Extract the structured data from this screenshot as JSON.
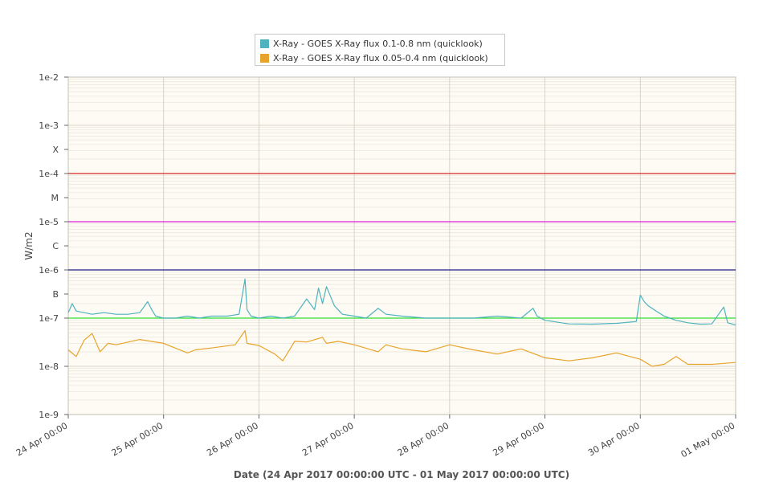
{
  "chart_data": {
    "type": "line",
    "title": "",
    "xlabel": "Date (24 Apr 2017 00:00:00 UTC - 01 May 2017 00:00:00 UTC)",
    "ylabel": "W/m2",
    "yscale": "log",
    "ylim": [
      1e-09,
      0.01
    ],
    "xlim": [
      "2017-04-24T00:00:00Z",
      "2017-05-01T00:00:00Z"
    ],
    "grid": true,
    "legend_position": "top-center",
    "plot_background": "#fdfbf3",
    "x_ticks": [
      "24 Apr 00:00",
      "25 Apr 00:00",
      "26 Apr 00:00",
      "27 Apr 00:00",
      "28 Apr 00:00",
      "29 Apr 00:00",
      "30 Apr 00:00",
      "01 May 00:00"
    ],
    "y_ticks": [
      {
        "label": "1e-9",
        "value": 1e-09
      },
      {
        "label": "1e-8",
        "value": 1e-08
      },
      {
        "label": "1e-7",
        "value": 1e-07
      },
      {
        "label": "B",
        "value": 3.16e-07
      },
      {
        "label": "1e-6",
        "value": 1e-06
      },
      {
        "label": "C",
        "value": 3.16e-06
      },
      {
        "label": "1e-5",
        "value": 1e-05
      },
      {
        "label": "M",
        "value": 3.16e-05
      },
      {
        "label": "1e-4",
        "value": 0.0001
      },
      {
        "label": "X",
        "value": 0.000316
      },
      {
        "label": "1e-3",
        "value": 0.001
      },
      {
        "label": "1e-2",
        "value": 0.01
      }
    ],
    "reference_lines": [
      {
        "value": 0.0001,
        "color": "#d62728"
      },
      {
        "value": 1e-05,
        "color": "#e020e0"
      },
      {
        "value": 1e-06,
        "color": "#1c1c8c"
      },
      {
        "value": 1e-07,
        "color": "#33dd33"
      }
    ],
    "series": [
      {
        "name": "X-Ray - GOES X-Ray flux 0.1-0.8 nm (quicklook)",
        "color": "#4fb2bf",
        "x": [
          "2017-04-24T00:00:00Z",
          "2017-04-24T01:00:00Z",
          "2017-04-24T02:00:00Z",
          "2017-04-24T04:00:00Z",
          "2017-04-24T06:00:00Z",
          "2017-04-24T09:00:00Z",
          "2017-04-24T12:00:00Z",
          "2017-04-24T15:00:00Z",
          "2017-04-24T18:00:00Z",
          "2017-04-24T20:00:00Z",
          "2017-04-24T21:00:00Z",
          "2017-04-24T22:00:00Z",
          "2017-04-25T00:00:00Z",
          "2017-04-25T03:00:00Z",
          "2017-04-25T06:00:00Z",
          "2017-04-25T09:00:00Z",
          "2017-04-25T12:00:00Z",
          "2017-04-25T16:00:00Z",
          "2017-04-25T19:00:00Z",
          "2017-04-25T20:30:00Z",
          "2017-04-25T21:00:00Z",
          "2017-04-25T22:00:00Z",
          "2017-04-26T00:00:00Z",
          "2017-04-26T03:00:00Z",
          "2017-04-26T06:00:00Z",
          "2017-04-26T09:00:00Z",
          "2017-04-26T12:00:00Z",
          "2017-04-26T14:00:00Z",
          "2017-04-26T15:00:00Z",
          "2017-04-26T16:00:00Z",
          "2017-04-26T17:00:00Z",
          "2017-04-26T19:00:00Z",
          "2017-04-26T21:00:00Z",
          "2017-04-27T00:00:00Z",
          "2017-04-27T03:00:00Z",
          "2017-04-27T06:00:00Z",
          "2017-04-27T08:00:00Z",
          "2017-04-27T12:00:00Z",
          "2017-04-27T18:00:00Z",
          "2017-04-28T00:00:00Z",
          "2017-04-28T06:00:00Z",
          "2017-04-28T12:00:00Z",
          "2017-04-28T18:00:00Z",
          "2017-04-28T21:00:00Z",
          "2017-04-28T22:00:00Z",
          "2017-04-29T00:00:00Z",
          "2017-04-29T06:00:00Z",
          "2017-04-29T12:00:00Z",
          "2017-04-29T18:00:00Z",
          "2017-04-29T23:00:00Z",
          "2017-04-30T00:00:00Z",
          "2017-04-30T01:00:00Z",
          "2017-04-30T02:00:00Z",
          "2017-04-30T04:00:00Z",
          "2017-04-30T06:00:00Z",
          "2017-04-30T09:00:00Z",
          "2017-04-30T12:00:00Z",
          "2017-04-30T15:00:00Z",
          "2017-04-30T18:00:00Z",
          "2017-04-30T21:00:00Z",
          "2017-04-30T22:00:00Z",
          "2017-05-01T00:00:00Z"
        ],
        "values": [
          1.3e-07,
          2e-07,
          1.4e-07,
          1.3e-07,
          1.2e-07,
          1.3e-07,
          1.2e-07,
          1.2e-07,
          1.3e-07,
          2.2e-07,
          1.5e-07,
          1.1e-07,
          1e-07,
          1e-07,
          1.1e-07,
          1e-07,
          1.1e-07,
          1.1e-07,
          1.2e-07,
          6.5e-07,
          1.5e-07,
          1.1e-07,
          1e-07,
          1.1e-07,
          1e-07,
          1.1e-07,
          2.5e-07,
          1.5e-07,
          4.2e-07,
          2e-07,
          4.5e-07,
          1.8e-07,
          1.2e-07,
          1.1e-07,
          1e-07,
          1.6e-07,
          1.2e-07,
          1.1e-07,
          1e-07,
          1e-07,
          1e-07,
          1.1e-07,
          1e-07,
          1.6e-07,
          1.1e-07,
          9e-08,
          7.6e-08,
          7.5e-08,
          7.8e-08,
          8.5e-08,
          3e-07,
          2.2e-07,
          1.8e-07,
          1.4e-07,
          1.1e-07,
          9e-08,
          8e-08,
          7.5e-08,
          7.6e-08,
          1.7e-07,
          8e-08,
          7.2e-08
        ]
      },
      {
        "name": "X-Ray - GOES X-Ray flux 0.05-0.4 nm (quicklook)",
        "color": "#e8a32c",
        "x": [
          "2017-04-24T00:00:00Z",
          "2017-04-24T02:00:00Z",
          "2017-04-24T04:00:00Z",
          "2017-04-24T06:00:00Z",
          "2017-04-24T08:00:00Z",
          "2017-04-24T10:00:00Z",
          "2017-04-24T12:00:00Z",
          "2017-04-24T18:00:00Z",
          "2017-04-25T00:00:00Z",
          "2017-04-25T06:00:00Z",
          "2017-04-25T08:00:00Z",
          "2017-04-25T12:00:00Z",
          "2017-04-25T18:00:00Z",
          "2017-04-25T20:30:00Z",
          "2017-04-25T21:00:00Z",
          "2017-04-26T00:00:00Z",
          "2017-04-26T04:00:00Z",
          "2017-04-26T06:00:00Z",
          "2017-04-26T09:00:00Z",
          "2017-04-26T12:00:00Z",
          "2017-04-26T16:00:00Z",
          "2017-04-26T17:00:00Z",
          "2017-04-26T20:00:00Z",
          "2017-04-27T00:00:00Z",
          "2017-04-27T06:00:00Z",
          "2017-04-27T08:00:00Z",
          "2017-04-27T12:00:00Z",
          "2017-04-27T18:00:00Z",
          "2017-04-28T00:00:00Z",
          "2017-04-28T06:00:00Z",
          "2017-04-28T12:00:00Z",
          "2017-04-28T18:00:00Z",
          "2017-04-29T00:00:00Z",
          "2017-04-29T06:00:00Z",
          "2017-04-29T12:00:00Z",
          "2017-04-29T18:00:00Z",
          "2017-04-30T00:00:00Z",
          "2017-04-30T03:00:00Z",
          "2017-04-30T06:00:00Z",
          "2017-04-30T09:00:00Z",
          "2017-04-30T12:00:00Z",
          "2017-04-30T18:00:00Z",
          "2017-05-01T00:00:00Z"
        ],
        "values": [
          2.2e-08,
          1.6e-08,
          3.5e-08,
          4.8e-08,
          2e-08,
          3e-08,
          2.8e-08,
          3.6e-08,
          3e-08,
          1.9e-08,
          2.2e-08,
          2.4e-08,
          2.8e-08,
          5.5e-08,
          3e-08,
          2.7e-08,
          1.8e-08,
          1.3e-08,
          3.3e-08,
          3.2e-08,
          4e-08,
          3e-08,
          3.3e-08,
          2.8e-08,
          2e-08,
          2.8e-08,
          2.3e-08,
          2e-08,
          2.8e-08,
          2.2e-08,
          1.8e-08,
          2.3e-08,
          1.5e-08,
          1.3e-08,
          1.5e-08,
          1.9e-08,
          1.4e-08,
          1e-08,
          1.1e-08,
          1.6e-08,
          1.1e-08,
          1.1e-08,
          1.2e-08
        ]
      }
    ]
  }
}
